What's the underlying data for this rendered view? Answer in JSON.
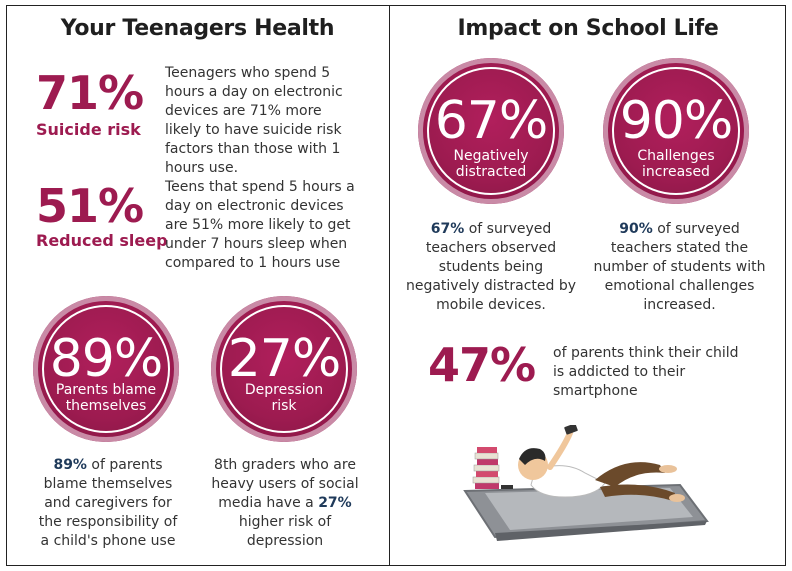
{
  "left": {
    "heading": "Your Teenagers Health",
    "stat1": {
      "pct": "71%",
      "caption": "Suicide risk",
      "text": "Teenagers who spend 5 hours a day on electronic devices are 71% more likely to have suicide risk factors than those with 1 hours use."
    },
    "stat2": {
      "pct": "51%",
      "caption": "Reduced sleep",
      "text": "Teens that spend 5 hours a day on electronic devices are 51% more likely to get under 7 hours sleep when compared to 1 hours use"
    },
    "circle1": {
      "pct": "89%",
      "label_line1": "Parents blame",
      "label_line2": "themselves",
      "desc_bold": "89%",
      "desc": " of parents blame themselves and caregivers for the responsibility of a child's phone use"
    },
    "circle2": {
      "pct": "27%",
      "label_line1": "Depression",
      "label_line2": "risk",
      "desc_pre": "8th graders who are heavy users of social media have a ",
      "desc_bold": "27%",
      "desc_post": " higher risk of depression"
    }
  },
  "right": {
    "heading": "Impact on School Life",
    "circle1": {
      "pct": "67%",
      "label_line1": "Negatively",
      "label_line2": "distracted",
      "desc_bold": "67%",
      "desc": " of surveyed teachers observed students being negatively distracted by mobile devices."
    },
    "circle2": {
      "pct": "90%",
      "label_line1": "Challenges",
      "label_line2": "increased",
      "desc_bold": "90%",
      "desc": " of surveyed teachers stated the number of students with emotional challenges increased."
    },
    "stat": {
      "pct": "47%",
      "text": "of parents think their child is addicted to their smartphone"
    }
  },
  "colors": {
    "accent": "#9d1b50",
    "bold_text": "#1f3a5a"
  }
}
